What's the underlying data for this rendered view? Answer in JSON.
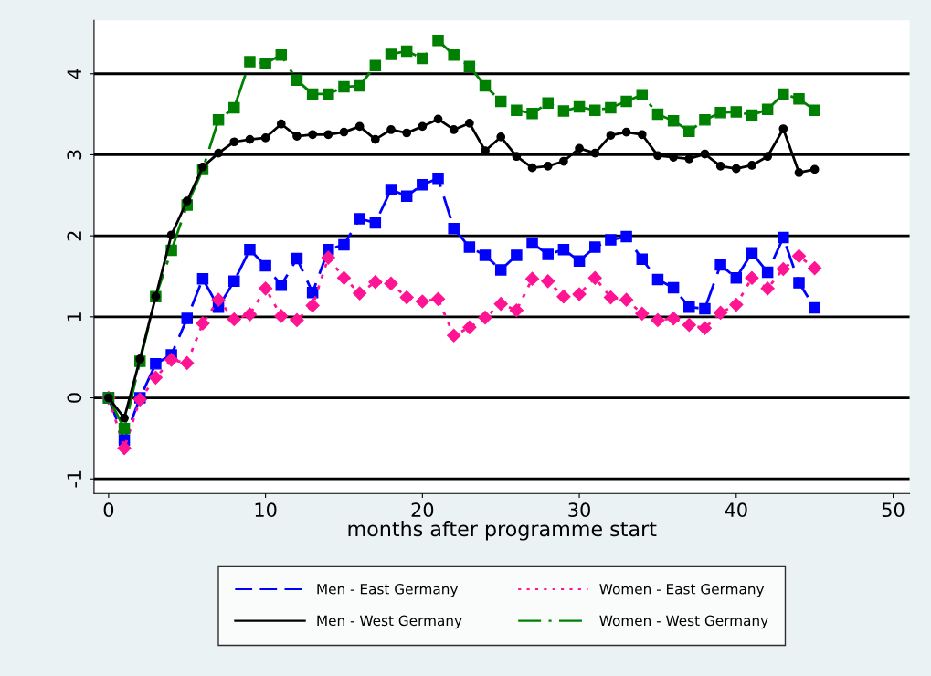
{
  "chart_data": {
    "type": "line",
    "xlabel": "months after programme start",
    "x": [
      0,
      1,
      2,
      3,
      4,
      5,
      6,
      7,
      8,
      9,
      10,
      11,
      12,
      13,
      14,
      15,
      16,
      17,
      18,
      19,
      20,
      21,
      22,
      23,
      24,
      25,
      26,
      27,
      28,
      29,
      30,
      31,
      32,
      33,
      34,
      35,
      36,
      37,
      38,
      39,
      40,
      41,
      42,
      43,
      44,
      45
    ],
    "series": [
      {
        "name": "Men - East Germany",
        "color": "#0000ff",
        "line_style": "dashed",
        "marker": "square",
        "values": [
          0,
          -0.52,
          0.0,
          0.42,
          0.53,
          0.98,
          1.47,
          1.12,
          1.44,
          1.83,
          1.63,
          1.39,
          1.72,
          1.3,
          1.83,
          1.89,
          2.21,
          2.16,
          2.57,
          2.49,
          2.63,
          2.71,
          2.09,
          1.86,
          1.76,
          1.58,
          1.76,
          1.91,
          1.77,
          1.83,
          1.69,
          1.86,
          1.95,
          1.99,
          1.71,
          1.46,
          1.36,
          1.12,
          1.1,
          1.64,
          1.48,
          1.79,
          1.55,
          1.98,
          1.42,
          1.11
        ]
      },
      {
        "name": "Women - East Germany",
        "color": "#ff1493",
        "line_style": "dotted",
        "marker": "diamond",
        "values": [
          0,
          -0.62,
          -0.02,
          0.25,
          0.47,
          0.43,
          0.92,
          1.21,
          0.97,
          1.03,
          1.35,
          1.01,
          0.96,
          1.14,
          1.73,
          1.48,
          1.29,
          1.43,
          1.41,
          1.24,
          1.19,
          1.22,
          0.77,
          0.87,
          0.99,
          1.16,
          1.08,
          1.47,
          1.44,
          1.25,
          1.28,
          1.48,
          1.24,
          1.21,
          1.04,
          0.96,
          0.98,
          0.9,
          0.86,
          1.05,
          1.15,
          1.48,
          1.35,
          1.59,
          1.75,
          1.6
        ]
      },
      {
        "name": "Men - West Germany",
        "color": "#000000",
        "line_style": "solid",
        "marker": "circle",
        "values": [
          0,
          -0.25,
          0.48,
          1.25,
          2.01,
          2.43,
          2.85,
          3.02,
          3.16,
          3.19,
          3.21,
          3.38,
          3.23,
          3.25,
          3.25,
          3.28,
          3.35,
          3.19,
          3.31,
          3.27,
          3.35,
          3.44,
          3.31,
          3.39,
          3.05,
          3.22,
          2.98,
          2.84,
          2.86,
          2.92,
          3.08,
          3.02,
          3.24,
          3.28,
          3.25,
          2.99,
          2.97,
          2.95,
          3.01,
          2.86,
          2.83,
          2.87,
          2.98,
          3.32,
          2.78,
          2.82
        ]
      },
      {
        "name": "Women - West Germany",
        "color": "#008000",
        "line_style": "dashdot",
        "marker": "square",
        "values": [
          0,
          -0.38,
          0.45,
          1.25,
          1.82,
          2.38,
          2.82,
          3.43,
          3.58,
          4.15,
          4.13,
          4.23,
          3.92,
          3.75,
          3.75,
          3.84,
          3.85,
          4.1,
          4.24,
          4.28,
          4.19,
          4.41,
          4.23,
          4.09,
          3.85,
          3.66,
          3.55,
          3.51,
          3.64,
          3.54,
          3.59,
          3.55,
          3.58,
          3.66,
          3.74,
          3.5,
          3.42,
          3.29,
          3.43,
          3.52,
          3.53,
          3.49,
          3.56,
          3.75,
          3.69,
          3.55
        ]
      }
    ],
    "xlim": [
      -0.93,
      51.05
    ],
    "ylim": [
      -1.18,
      4.66
    ],
    "xticks": [
      0,
      10,
      20,
      30,
      40,
      50
    ],
    "yticks": [
      -1,
      0,
      1,
      2,
      3,
      4
    ],
    "grid": "y",
    "legend": "bottom"
  }
}
